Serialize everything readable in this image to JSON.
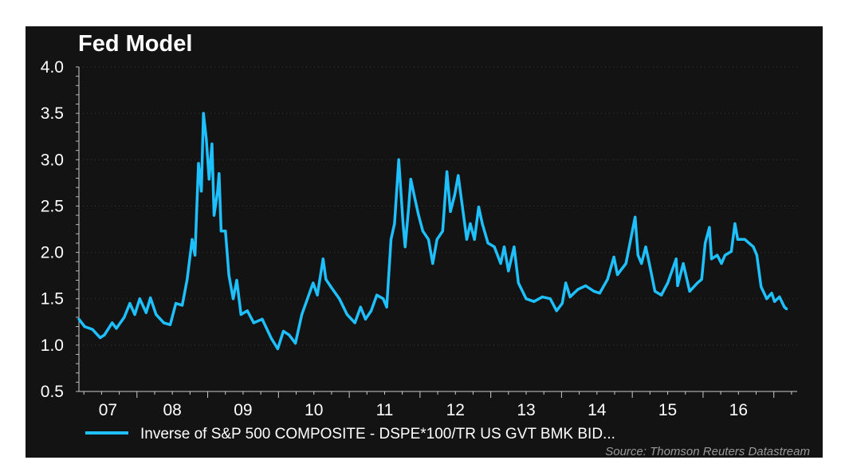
{
  "chart_data": {
    "type": "line",
    "title": "Fed Model",
    "xlabel": "",
    "ylabel": "",
    "ylim": [
      0.5,
      4.0
    ],
    "xlim": [
      2007.18,
      2017.33
    ],
    "yticks": [
      "0.5",
      "1.0",
      "1.5",
      "2.0",
      "2.5",
      "3.0",
      "3.5",
      "4.0"
    ],
    "xticks": [
      "07",
      "08",
      "09",
      "10",
      "11",
      "12",
      "13",
      "14",
      "15",
      "16"
    ],
    "grid": true,
    "legend_position": "bottom",
    "color": "#1ec0ff",
    "series": [
      {
        "name": "Inverse of S&P 500 COMPOSITE - DSPE*100/TR US GVT BMK BID...",
        "x": [
          2007.18,
          2007.26,
          2007.37,
          2007.48,
          2007.54,
          2007.65,
          2007.71,
          2007.82,
          2007.9,
          2007.97,
          2008.04,
          2008.13,
          2008.19,
          2008.27,
          2008.38,
          2008.47,
          2008.55,
          2008.64,
          2008.71,
          2008.78,
          2008.82,
          2008.87,
          2008.91,
          2008.94,
          2008.98,
          2009.02,
          2009.06,
          2009.09,
          2009.14,
          2009.16,
          2009.19,
          2009.25,
          2009.3,
          2009.36,
          2009.41,
          2009.47,
          2009.56,
          2009.65,
          2009.77,
          2009.9,
          2009.99,
          2010.07,
          2010.15,
          2010.24,
          2010.33,
          2010.41,
          2010.49,
          2010.55,
          2010.63,
          2010.67,
          2010.74,
          2010.86,
          2010.97,
          2011.08,
          2011.16,
          2011.23,
          2011.31,
          2011.39,
          2011.48,
          2011.53,
          2011.59,
          2011.64,
          2011.7,
          2011.76,
          2011.79,
          2011.84,
          2011.87,
          2011.93,
          2011.98,
          2012.04,
          2012.12,
          2012.18,
          2012.24,
          2012.32,
          2012.38,
          2012.43,
          2012.49,
          2012.54,
          2012.6,
          2012.66,
          2012.71,
          2012.77,
          2012.83,
          2012.88,
          2012.96,
          2013.05,
          2013.14,
          2013.19,
          2013.25,
          2013.33,
          2013.39,
          2013.5,
          2013.61,
          2013.73,
          2013.84,
          2013.93,
          2014.01,
          2014.06,
          2014.12,
          2014.23,
          2014.34,
          2014.46,
          2014.54,
          2014.65,
          2014.74,
          2014.79,
          2014.91,
          2014.99,
          2015.04,
          2015.08,
          2015.13,
          2015.19,
          2015.24,
          2015.32,
          2015.41,
          2015.5,
          2015.62,
          2015.64,
          2015.72,
          2015.81,
          2015.92,
          2015.98,
          2016.03,
          2016.09,
          2016.12,
          2016.2,
          2016.26,
          2016.31,
          2016.4,
          2016.45,
          2016.49,
          2016.59,
          2016.71,
          2016.76,
          2016.82,
          2016.9,
          2016.97,
          2017.01,
          2017.08,
          2017.15,
          2017.18
        ],
        "y": [
          1.28,
          1.2,
          1.17,
          1.08,
          1.11,
          1.24,
          1.18,
          1.3,
          1.45,
          1.33,
          1.5,
          1.35,
          1.51,
          1.33,
          1.24,
          1.22,
          1.45,
          1.43,
          1.71,
          2.14,
          1.97,
          2.96,
          2.66,
          3.5,
          3.22,
          2.79,
          3.17,
          2.4,
          2.66,
          2.85,
          2.23,
          2.23,
          1.75,
          1.5,
          1.7,
          1.33,
          1.37,
          1.24,
          1.28,
          1.07,
          0.96,
          1.15,
          1.11,
          1.02,
          1.33,
          1.5,
          1.67,
          1.54,
          1.93,
          1.71,
          1.63,
          1.5,
          1.33,
          1.24,
          1.41,
          1.28,
          1.37,
          1.54,
          1.5,
          1.41,
          2.14,
          2.31,
          3.0,
          2.31,
          2.06,
          2.49,
          2.79,
          2.57,
          2.4,
          2.23,
          2.14,
          1.88,
          2.14,
          2.23,
          2.87,
          2.44,
          2.62,
          2.83,
          2.49,
          2.14,
          2.31,
          2.14,
          2.49,
          2.31,
          2.1,
          2.06,
          1.88,
          2.06,
          1.8,
          2.06,
          1.67,
          1.5,
          1.47,
          1.52,
          1.5,
          1.37,
          1.45,
          1.67,
          1.52,
          1.6,
          1.64,
          1.58,
          1.56,
          1.71,
          1.95,
          1.76,
          1.88,
          2.19,
          2.38,
          1.97,
          1.88,
          2.06,
          1.88,
          1.58,
          1.54,
          1.67,
          1.93,
          1.64,
          1.88,
          1.58,
          1.67,
          1.71,
          2.1,
          2.27,
          1.93,
          1.97,
          1.88,
          1.97,
          2.01,
          2.31,
          2.14,
          2.14,
          2.06,
          1.97,
          1.63,
          1.5,
          1.56,
          1.47,
          1.52,
          1.41,
          1.39
        ]
      }
    ],
    "source": "Source: Thomson Reuters Datastream"
  }
}
